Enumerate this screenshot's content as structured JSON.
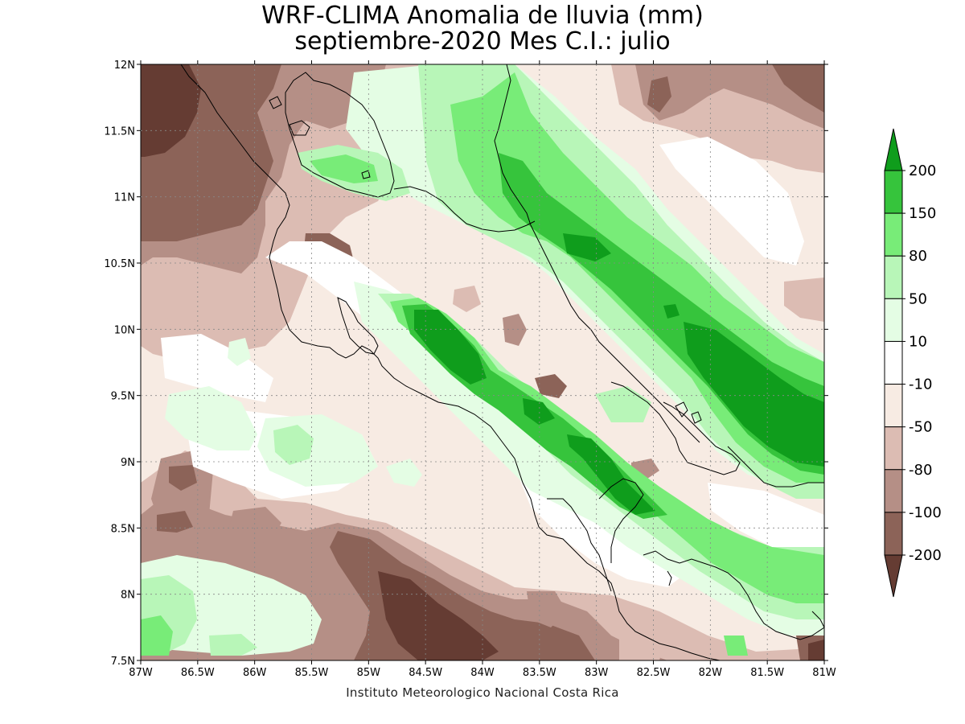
{
  "title": {
    "line1": "WRF-CLIMA Anomalia de lluvia (mm)",
    "line2": "septiembre-2020 Mes C.I.: julio"
  },
  "credit": "Instituto Meteorologico Nacional Costa Rica",
  "map": {
    "lon_range": [
      -87,
      -81
    ],
    "lat_range": [
      7.5,
      12
    ],
    "x_ticks": [
      {
        "value": -87,
        "label": "87W"
      },
      {
        "value": -86.5,
        "label": "86.5W"
      },
      {
        "value": -86,
        "label": "86W"
      },
      {
        "value": -85.5,
        "label": "85.5W"
      },
      {
        "value": -85,
        "label": "85W"
      },
      {
        "value": -84.5,
        "label": "84.5W"
      },
      {
        "value": -84,
        "label": "84W"
      },
      {
        "value": -83.5,
        "label": "83.5W"
      },
      {
        "value": -83,
        "label": "83W"
      },
      {
        "value": -82.5,
        "label": "82.5W"
      },
      {
        "value": -82,
        "label": "82W"
      },
      {
        "value": -81.5,
        "label": "81.5W"
      },
      {
        "value": -81,
        "label": "81W"
      }
    ],
    "y_ticks": [
      {
        "value": 12,
        "label": "12N"
      },
      {
        "value": 11.5,
        "label": "11.5N"
      },
      {
        "value": 11,
        "label": "11N"
      },
      {
        "value": 10.5,
        "label": "10.5N"
      },
      {
        "value": 10,
        "label": "10N"
      },
      {
        "value": 9.5,
        "label": "9.5N"
      },
      {
        "value": 9,
        "label": "9N"
      },
      {
        "value": 8.5,
        "label": "8.5N"
      },
      {
        "value": 8,
        "label": "8N"
      },
      {
        "value": 7.5,
        "label": "7.5N"
      }
    ],
    "grid": true,
    "grid_style": "dotted"
  },
  "legend": {
    "placement": "right",
    "bins": [
      {
        "color": "#0f9d1c",
        "upper": "200"
      },
      {
        "color": "#36c43c",
        "upper": "150"
      },
      {
        "color": "#78ec78",
        "upper": "80"
      },
      {
        "color": "#b8f6b8",
        "upper": "50"
      },
      {
        "color": "#e4fde4",
        "upper": "10"
      },
      {
        "color": "#ffffff",
        "upper": "-10"
      },
      {
        "color": "#f7ebe3",
        "upper": "-50"
      },
      {
        "color": "#dcbcb3",
        "upper": "-80"
      },
      {
        "color": "#b58f86",
        "upper": "-100"
      },
      {
        "color": "#8c6358",
        "upper": "-200"
      },
      {
        "color": "#653c33",
        "upper": ""
      }
    ],
    "labels": [
      "200",
      "150",
      "80",
      "50",
      "10",
      "-10",
      "-50",
      "-80",
      "-100",
      "-200"
    ]
  },
  "colors": {
    "background": "#f7ebe3",
    "dry_extreme": "#653c33",
    "dry_strong": "#8c6358",
    "dry_moderate": "#b58f86",
    "dry_light": "#dcbcb3",
    "near_normal": "#ffffff",
    "wet_light": "#e4fde4",
    "wet_moderate": "#b8f6b8",
    "wet_strong": "#78ec78",
    "wet_heavy": "#36c43c",
    "wet_extreme": "#0f9d1c",
    "coastline": "#000000"
  }
}
